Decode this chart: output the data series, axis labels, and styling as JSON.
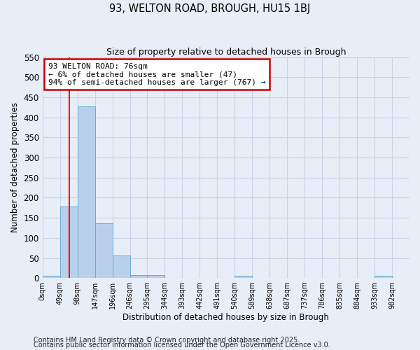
{
  "title": "93, WELTON ROAD, BROUGH, HU15 1BJ",
  "subtitle": "Size of property relative to detached houses in Brough",
  "xlabel": "Distribution of detached houses by size in Brough",
  "ylabel": "Number of detached properties",
  "bin_labels": [
    "0sqm",
    "49sqm",
    "98sqm",
    "147sqm",
    "196sqm",
    "246sqm",
    "295sqm",
    "344sqm",
    "393sqm",
    "442sqm",
    "491sqm",
    "540sqm",
    "589sqm",
    "638sqm",
    "687sqm",
    "737sqm",
    "786sqm",
    "835sqm",
    "884sqm",
    "933sqm",
    "982sqm"
  ],
  "bin_edges": [
    0,
    49,
    98,
    147,
    196,
    245,
    294,
    343,
    392,
    441,
    490,
    539,
    588,
    637,
    686,
    735,
    784,
    833,
    882,
    931,
    980
  ],
  "bar_heights": [
    5,
    178,
    428,
    136,
    57,
    7,
    7,
    0,
    0,
    0,
    0,
    5,
    0,
    0,
    0,
    0,
    0,
    0,
    0,
    5
  ],
  "bar_color": "#b8d0ea",
  "bar_edge_color": "#6aaad4",
  "grid_color": "#c8d4e8",
  "bg_color": "#e8eef8",
  "red_line_x": 76,
  "annotation_text": "93 WELTON ROAD: 76sqm\n← 6% of detached houses are smaller (47)\n94% of semi-detached houses are larger (767) →",
  "annotation_box_color": "#ffffff",
  "annotation_border_color": "#cc0000",
  "ylim": [
    0,
    550
  ],
  "footnote1": "Contains HM Land Registry data © Crown copyright and database right 2025.",
  "footnote2": "Contains public sector information licensed under the Open Government Licence v3.0."
}
